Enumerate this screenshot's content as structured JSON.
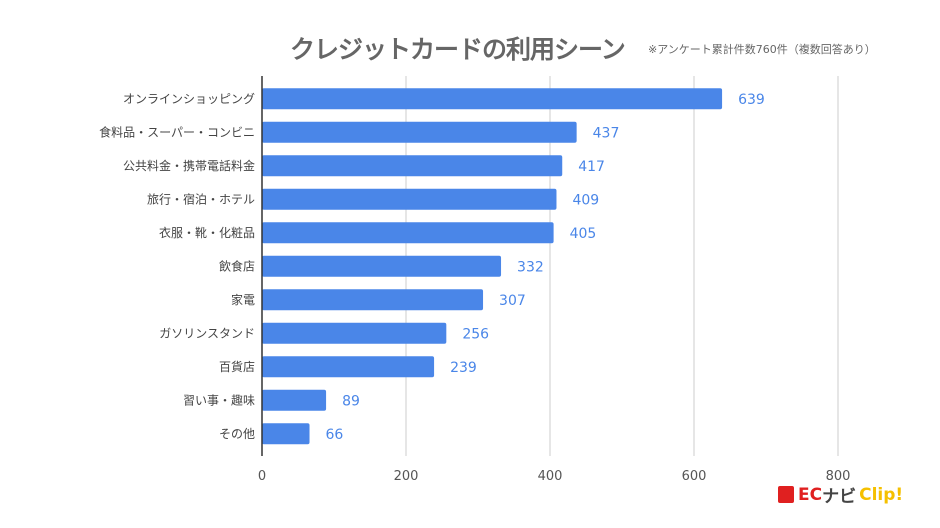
{
  "chart_data": {
    "type": "bar",
    "orientation": "horizontal",
    "title": "クレジットカードの利用シーン",
    "subtitle": "※アンケート累計件数760件（複数回答あり）",
    "categories": [
      "オンラインショッピング",
      "食料品・スーパー・コンビニ",
      "公共料金・携帯電話料金",
      "旅行・宿泊・ホテル",
      "衣服・靴・化粧品",
      "飲食店",
      "家電",
      "ガソリンスタンド",
      "百貨店",
      "習い事・趣味",
      "その他"
    ],
    "values": [
      639,
      437,
      417,
      409,
      405,
      332,
      307,
      256,
      239,
      89,
      66
    ],
    "xlim": [
      0,
      800
    ],
    "xticks": [
      0,
      200,
      400,
      600,
      800
    ],
    "grid": true,
    "xlabel": "",
    "ylabel": "",
    "bar_color": "#4a86e8",
    "label_color": "#4a86e8"
  },
  "logo": {
    "ec": "EC",
    "navi": "ナビ",
    "clip": "Clip!"
  }
}
